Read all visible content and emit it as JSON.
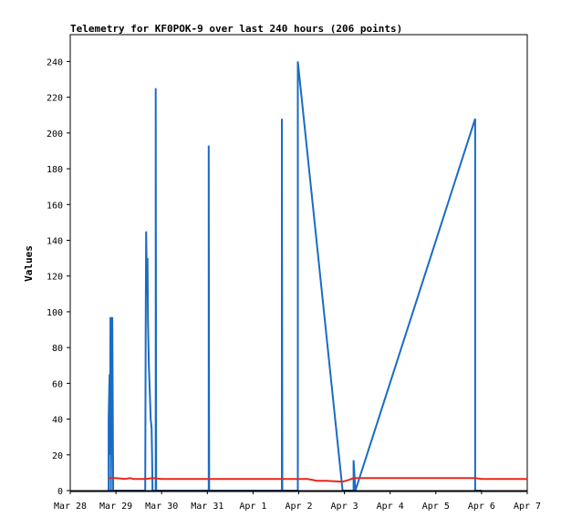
{
  "chart_data": {
    "type": "line",
    "title": "Telemetry for KF0POK-9 over last 240 hours (206 points)",
    "xlabel": "",
    "ylabel": "Values",
    "x_unit": "day (Mar 28 = 0)",
    "xlim": [
      0,
      10
    ],
    "ylim": [
      0,
      255
    ],
    "x_tick_values": [
      0,
      1,
      2,
      3,
      4,
      5,
      6,
      7,
      8,
      9,
      10
    ],
    "x_tick_labels": [
      "Mar 28",
      "Mar 29",
      "Mar 30",
      "Mar 31",
      "Apr 1",
      "Apr 2",
      "Apr 3",
      "Apr 4",
      "Apr 5",
      "Apr 6",
      "Apr 7"
    ],
    "y_ticks": [
      0,
      20,
      40,
      60,
      80,
      100,
      120,
      140,
      160,
      180,
      200,
      220,
      240
    ],
    "grid": false,
    "legend": "none",
    "series": [
      {
        "color": "#1a6bc4",
        "points": [
          [
            0.84,
            0
          ],
          [
            0.84,
            40
          ],
          [
            0.86,
            65
          ],
          [
            0.87,
            20
          ],
          [
            0.88,
            97
          ],
          [
            0.89,
            0
          ],
          [
            0.9,
            40
          ],
          [
            0.92,
            97
          ],
          [
            0.93,
            50
          ],
          [
            0.94,
            0
          ],
          [
            1.64,
            0
          ],
          [
            1.65,
            88
          ],
          [
            1.66,
            145
          ],
          [
            1.68,
            110
          ],
          [
            1.69,
            130
          ],
          [
            1.7,
            95
          ],
          [
            1.72,
            70
          ],
          [
            1.74,
            55
          ],
          [
            1.76,
            40
          ],
          [
            1.78,
            35
          ],
          [
            1.79,
            20
          ],
          [
            1.8,
            0
          ],
          [
            1.87,
            0
          ],
          [
            1.87,
            225
          ],
          [
            1.88,
            0
          ],
          [
            3.03,
            0
          ],
          [
            3.03,
            193
          ],
          [
            3.04,
            0
          ],
          [
            4.63,
            0
          ],
          [
            4.63,
            208
          ],
          [
            4.64,
            0
          ],
          [
            4.98,
            0
          ],
          [
            4.98,
            240
          ],
          [
            5.96,
            0
          ],
          [
            6.2,
            0
          ],
          [
            6.2,
            17
          ],
          [
            6.24,
            0
          ],
          [
            8.86,
            208
          ],
          [
            8.86,
            0
          ],
          [
            9.0,
            0
          ]
        ]
      },
      {
        "color": "#e8261e",
        "points": [
          [
            0.84,
            7
          ],
          [
            1.0,
            7
          ],
          [
            1.2,
            6.5
          ],
          [
            1.3,
            7
          ],
          [
            1.4,
            6.5
          ],
          [
            1.64,
            6.5
          ],
          [
            1.8,
            7
          ],
          [
            2.0,
            6.5
          ],
          [
            3.0,
            6.5
          ],
          [
            4.0,
            6.5
          ],
          [
            5.2,
            6.5
          ],
          [
            5.4,
            5.5
          ],
          [
            5.6,
            5.5
          ],
          [
            5.96,
            5
          ],
          [
            6.1,
            6
          ],
          [
            6.2,
            7
          ],
          [
            7.0,
            7
          ],
          [
            8.0,
            7
          ],
          [
            8.86,
            7
          ],
          [
            9.0,
            6.5
          ],
          [
            9.5,
            6.5
          ],
          [
            10.0,
            6.5
          ]
        ]
      }
    ]
  }
}
